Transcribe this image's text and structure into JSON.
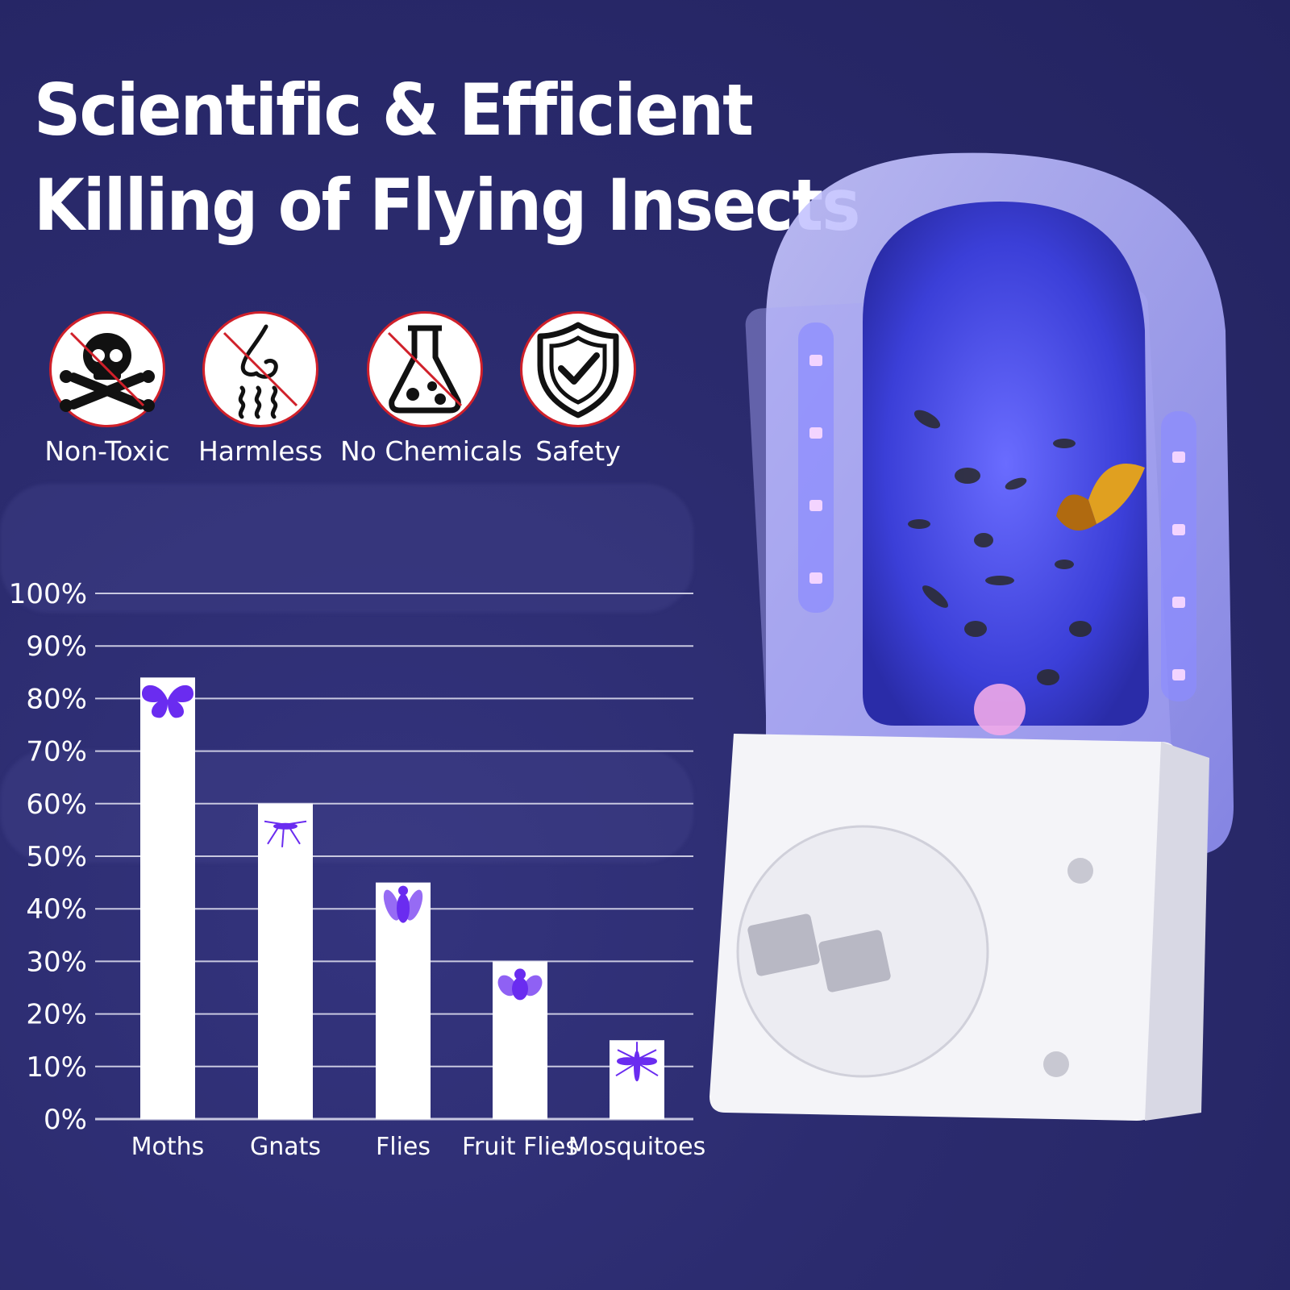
{
  "headline": {
    "line1": "Scientific & Efficient",
    "line2": "Killing of Flying Insects"
  },
  "badges": [
    {
      "label": "Non-Toxic",
      "icon": "skull-crossbones-icon"
    },
    {
      "label": "Harmless",
      "icon": "nose-smell-icon"
    },
    {
      "label": "No Chemicals",
      "icon": "flask-icon"
    },
    {
      "label": "Safety",
      "icon": "shield-check-icon"
    }
  ],
  "colors": {
    "background": "#2b2b6e",
    "bar": "#ffffff",
    "icon_purple": "#6a2cf0",
    "prohibit_red": "#d0202a"
  },
  "chart_data": {
    "type": "bar",
    "title": "",
    "xlabel": "",
    "ylabel": "",
    "categories": [
      "Moths",
      "Gnats",
      "Flies",
      "Fruit Flies",
      "Mosquitoes"
    ],
    "values": [
      84,
      60,
      45,
      30,
      15
    ],
    "ylim": [
      0,
      100
    ],
    "yticks": [
      "0%",
      "10%",
      "20%",
      "30%",
      "40%",
      "50%",
      "60%",
      "70%",
      "80%",
      "90%",
      "100%"
    ],
    "grid": true,
    "bar_icons": [
      "butterfly-icon",
      "gnat-icon",
      "fly-icon",
      "fruit-fly-icon",
      "mosquito-icon"
    ]
  }
}
